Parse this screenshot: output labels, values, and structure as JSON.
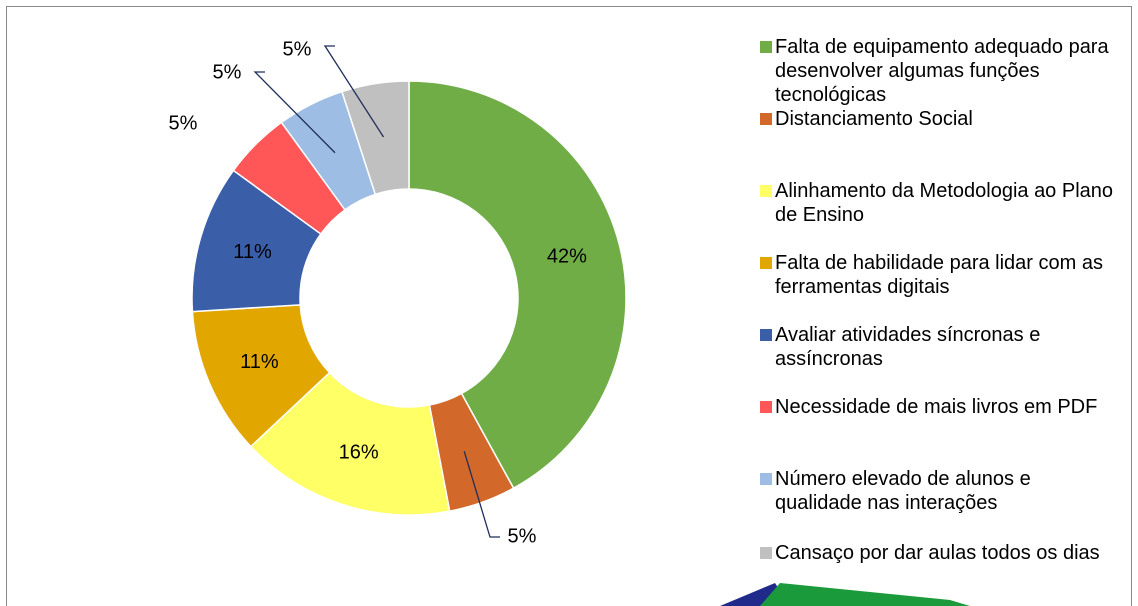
{
  "chart_data": {
    "type": "donut",
    "categories": [
      "Falta de equipamento adequado para desenvolver algumas funções tecnológicas",
      "Distanciamento Social",
      "Alinhamento da Metodologia ao Plano de Ensino",
      "Falta de habilidade para lidar com as ferramentas digitais",
      "Avaliar atividades síncronas e assíncronas",
      "Necessidade de mais livros em PDF",
      "Número elevado de alunos e qualidade nas interações",
      "Cansaço por dar aulas todos os dias"
    ],
    "values": [
      42,
      5,
      16,
      11,
      11,
      5,
      5,
      5
    ],
    "value_labels": [
      "42%",
      "5%",
      "16%",
      "11%",
      "11%",
      "5%",
      "5%",
      "5%"
    ],
    "colors": [
      "#70ad47",
      "#d2692b",
      "#ffff66",
      "#e2a600",
      "#3a5ea8",
      "#ff5757",
      "#9dbde4",
      "#c0c0c0"
    ],
    "legend": "right"
  }
}
